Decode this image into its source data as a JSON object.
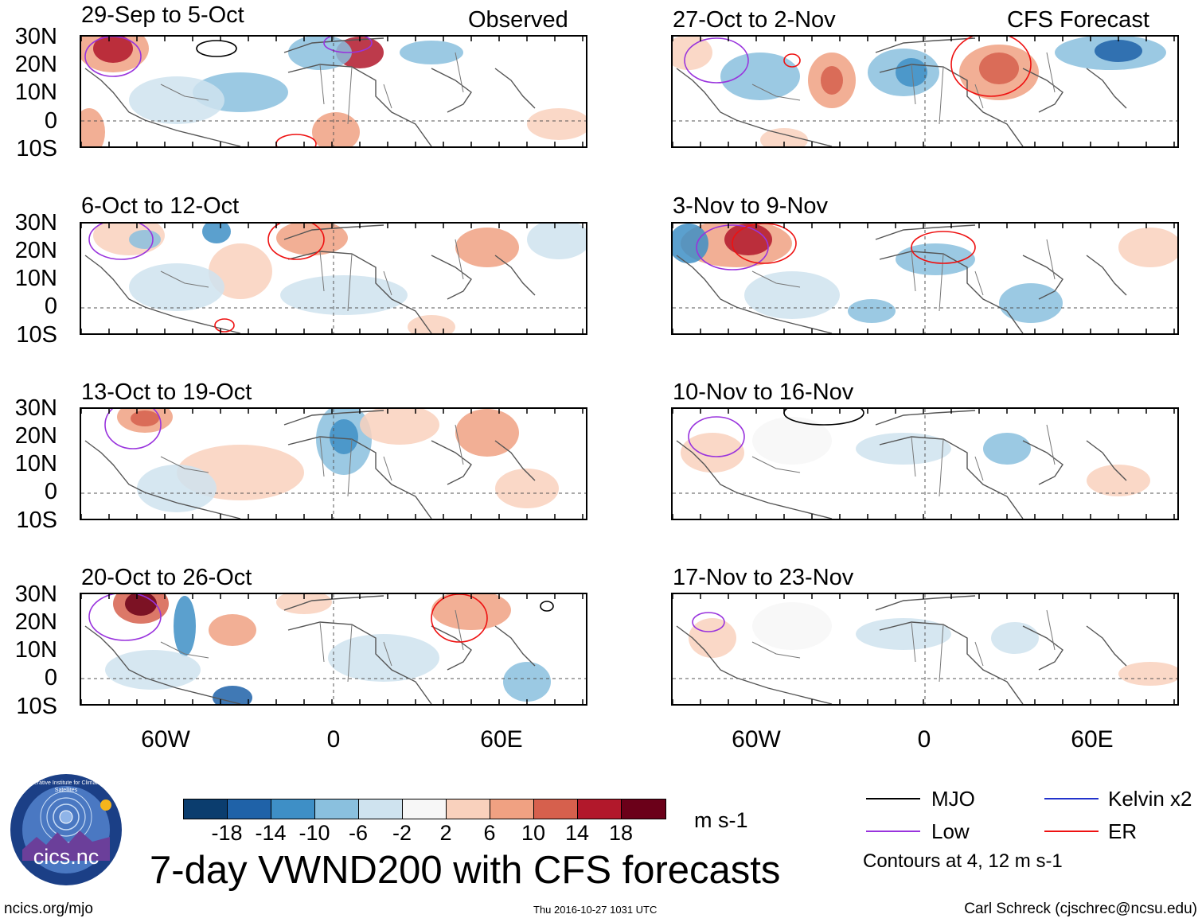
{
  "header": {
    "left": "Observed",
    "right": "CFS Forecast"
  },
  "panels": {
    "obs": [
      "29-Sep to 5-Oct",
      "6-Oct to 12-Oct",
      "13-Oct to 19-Oct",
      "20-Oct to 26-Oct"
    ],
    "fcst": [
      "27-Oct to 2-Nov",
      "3-Nov to 9-Nov",
      "10-Nov to 16-Nov",
      "17-Nov to 23-Nov"
    ]
  },
  "yaxis": [
    "30N",
    "20N",
    "10N",
    "0",
    "10S"
  ],
  "xaxis": [
    "60W",
    "0",
    "60E"
  ],
  "colorbar": {
    "colors": [
      "#0b3d6e",
      "#1f62a8",
      "#3e8fc6",
      "#8ac0de",
      "#cfe3ef",
      "#f7f7f7",
      "#f9d1bd",
      "#f0a182",
      "#d6604d",
      "#b2182b",
      "#6b0019"
    ],
    "labels": [
      "-18",
      "-14",
      "-10",
      "-6",
      "-2",
      "2",
      "6",
      "10",
      "14",
      "18"
    ],
    "units": "m s-1"
  },
  "title": "7-day VWND200 with CFS forecasts",
  "legend": {
    "items": [
      {
        "label": "MJO",
        "color": "#000000"
      },
      {
        "label": "Kelvin x2",
        "color": "#2233cc"
      },
      {
        "label": "Low",
        "color": "#9933dd"
      },
      {
        "label": "ER",
        "color": "#ee1111"
      }
    ],
    "note": "Contours at 4, 12 m s-1"
  },
  "logo": {
    "text": "cics.nc",
    "ring": "Cooperative Institute for Climate and Satellites"
  },
  "footer": {
    "left": "ncics.org/mjo",
    "center": "Thu 2016-10-27 1031 UTC",
    "right": "Carl Schreck (cjschrec@ncsu.edu)"
  }
}
